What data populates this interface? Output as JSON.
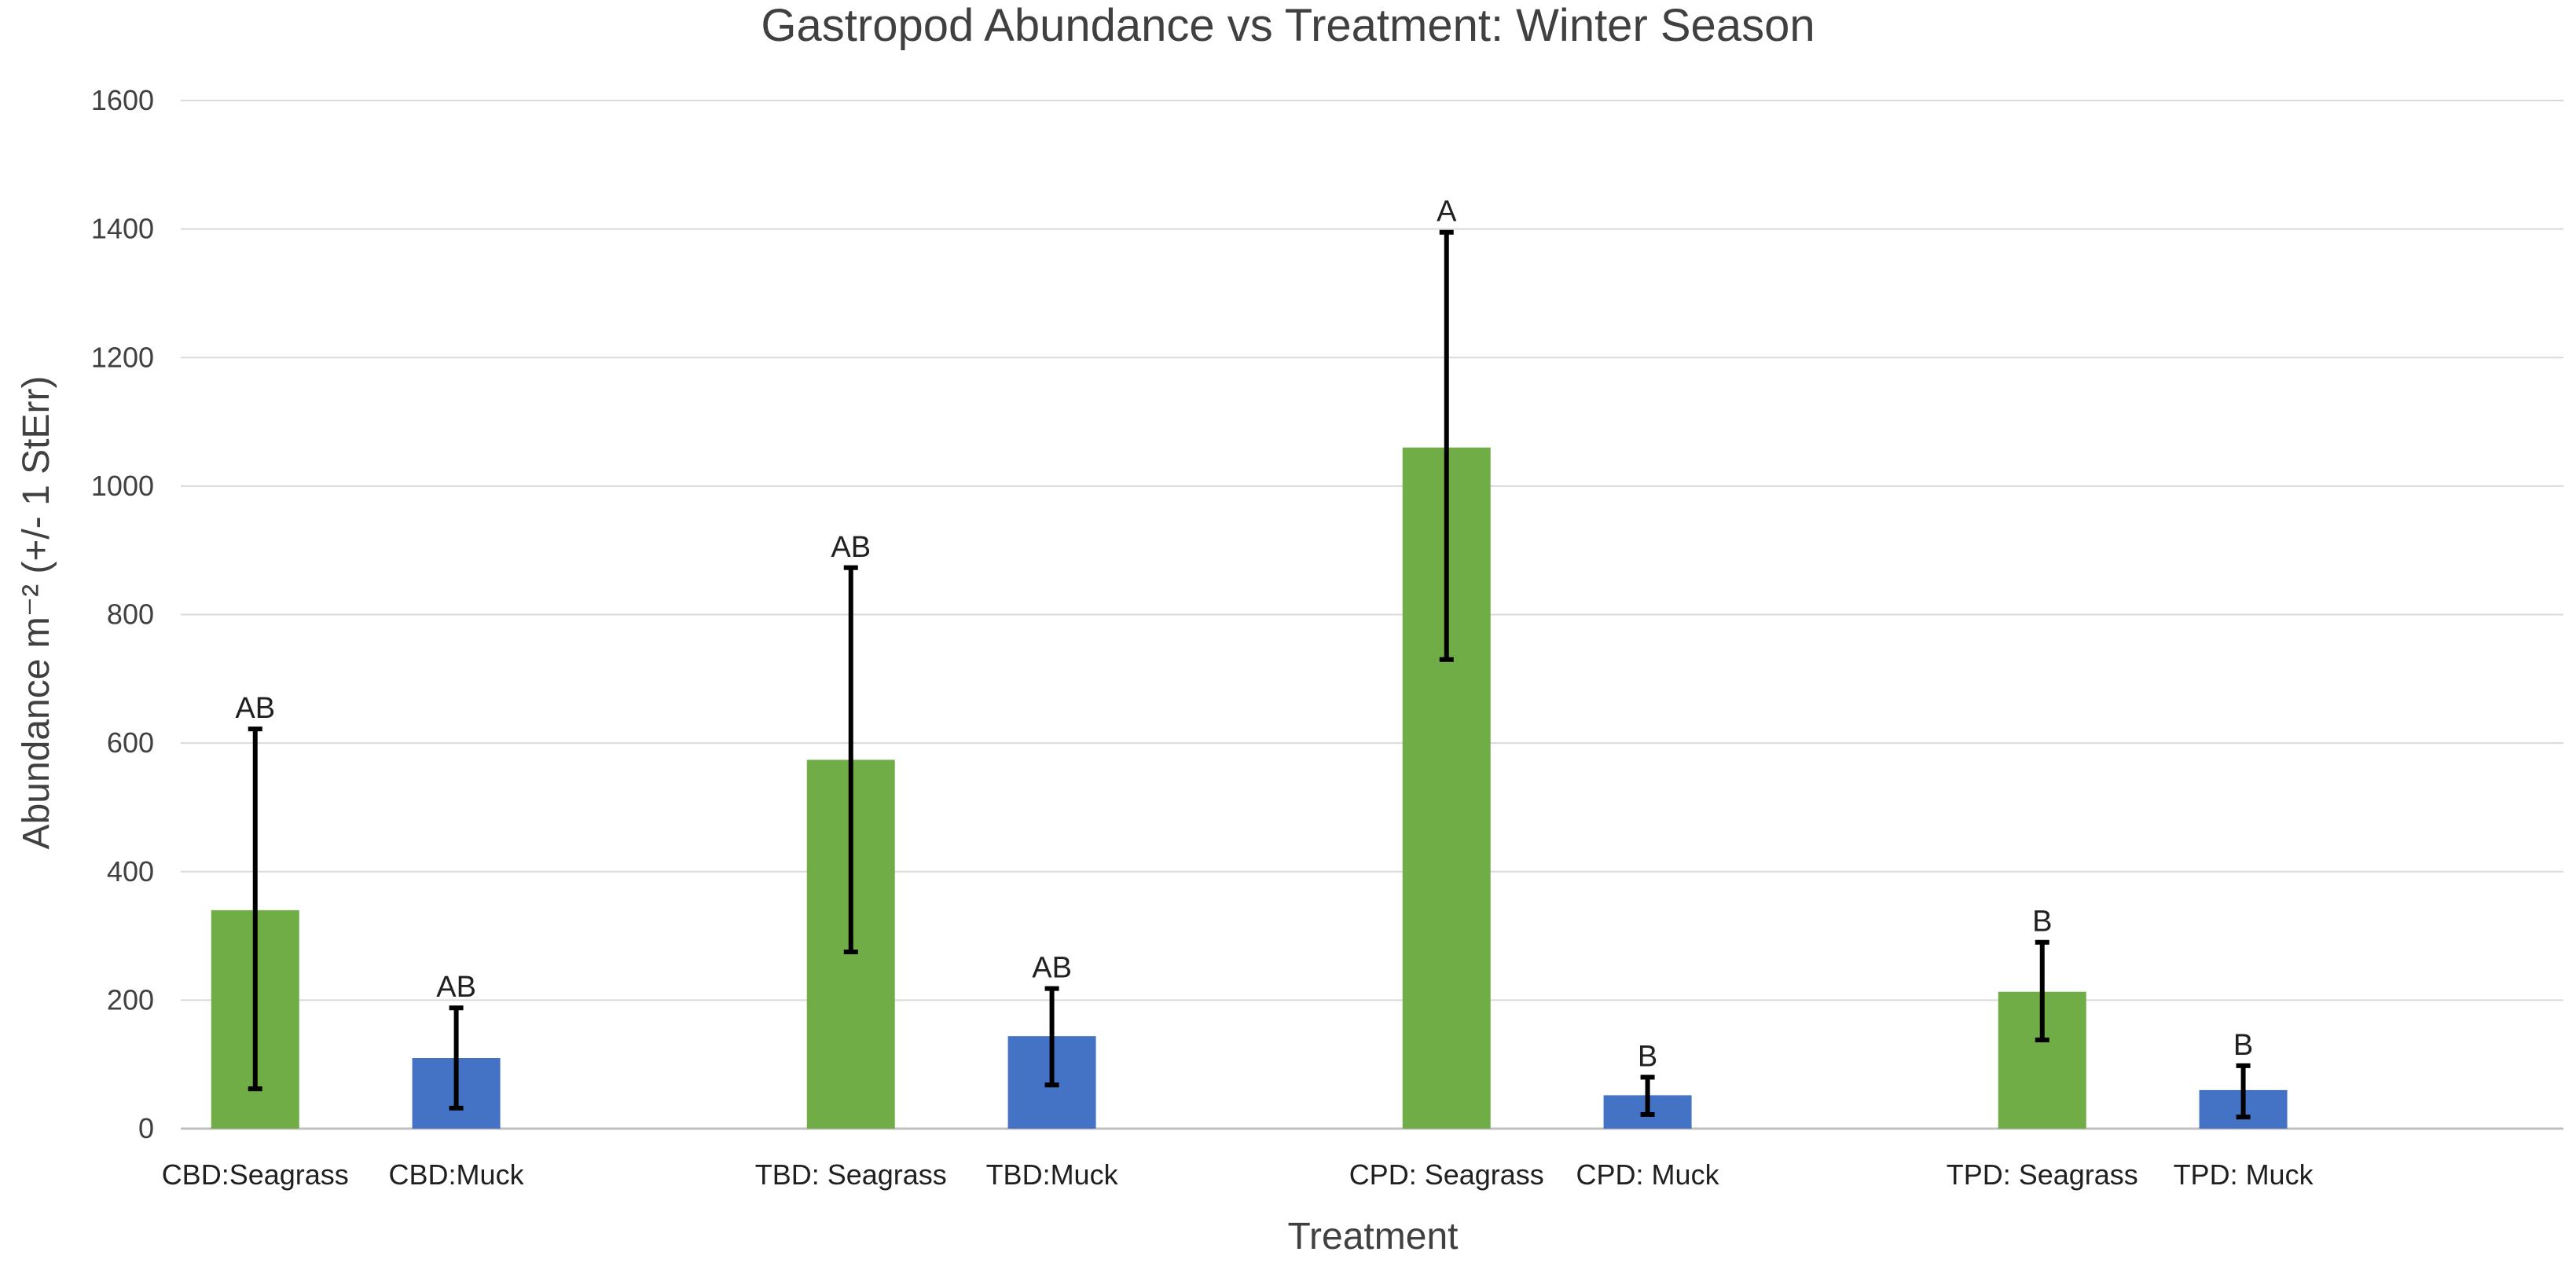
{
  "chart_data": {
    "type": "bar",
    "title": "Gastropod Abundance vs Treatment: Winter Season",
    "xlabel": "Treatment",
    "ylabel": "Abundance m⁻² (+/- 1 StErr)",
    "ylim": [
      0,
      1600
    ],
    "yticks": [
      0,
      200,
      400,
      600,
      800,
      1000,
      1200,
      1400,
      1600
    ],
    "grid": true,
    "colors": {
      "seagrass": "#70ad47",
      "muck": "#4472c4"
    },
    "groups": [
      {
        "bars": [
          {
            "category": "CBD:Seagrass",
            "value": 340,
            "err_low": 62,
            "err_high": 622,
            "label": "AB",
            "color": "seagrass"
          },
          {
            "category": "CBD:Muck",
            "value": 110,
            "err_low": 32,
            "err_high": 188,
            "label": "AB",
            "color": "muck"
          }
        ]
      },
      {
        "bars": [
          {
            "category": "TBD: Seagrass",
            "value": 574,
            "err_low": 275,
            "err_high": 873,
            "label": "AB",
            "color": "seagrass"
          },
          {
            "category": "TBD:Muck",
            "value": 144,
            "err_low": 68,
            "err_high": 218,
            "label": "AB",
            "color": "muck"
          }
        ]
      },
      {
        "bars": [
          {
            "category": "CPD: Seagrass",
            "value": 1060,
            "err_low": 730,
            "err_high": 1395,
            "label": "A",
            "color": "seagrass"
          },
          {
            "category": "CPD: Muck",
            "value": 52,
            "err_low": 22,
            "err_high": 80,
            "label": "B",
            "color": "muck"
          }
        ]
      },
      {
        "bars": [
          {
            "category": "TPD: Seagrass",
            "value": 213,
            "err_low": 138,
            "err_high": 290,
            "label": "B",
            "color": "seagrass"
          },
          {
            "category": "TPD: Muck",
            "value": 60,
            "err_low": 18,
            "err_high": 98,
            "label": "B",
            "color": "muck"
          }
        ]
      }
    ]
  }
}
